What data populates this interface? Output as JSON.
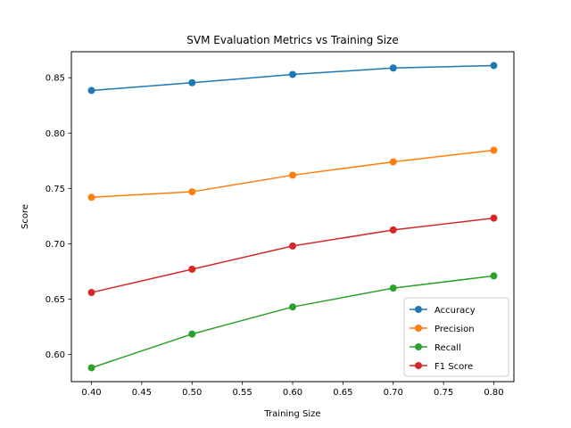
{
  "chart_data": {
    "type": "line",
    "title": "SVM Evaluation Metrics vs Training Size",
    "xlabel": "Training Size",
    "ylabel": "Score",
    "x": [
      0.4,
      0.5,
      0.6,
      0.7,
      0.8
    ],
    "xlim": [
      0.38,
      0.82
    ],
    "ylim": [
      0.5755,
      0.8735
    ],
    "xticks": [
      "0.40",
      "0.45",
      "0.50",
      "0.55",
      "0.60",
      "0.65",
      "0.70",
      "0.75",
      "0.80"
    ],
    "yticks": [
      "0.60",
      "0.65",
      "0.70",
      "0.75",
      "0.80",
      "0.85"
    ],
    "grid": false,
    "legend_position": "lower-right",
    "series": [
      {
        "name": "Accuracy",
        "color": "#1f77b4",
        "values": [
          0.8385,
          0.8455,
          0.853,
          0.8588,
          0.861
        ]
      },
      {
        "name": "Precision",
        "color": "#ff7f0e",
        "values": [
          0.742,
          0.747,
          0.762,
          0.774,
          0.7845
        ]
      },
      {
        "name": "Recall",
        "color": "#2ca02c",
        "values": [
          0.588,
          0.6185,
          0.643,
          0.66,
          0.671
        ]
      },
      {
        "name": "F1 Score",
        "color": "#d62728",
        "values": [
          0.656,
          0.677,
          0.698,
          0.7125,
          0.7232
        ]
      }
    ]
  }
}
